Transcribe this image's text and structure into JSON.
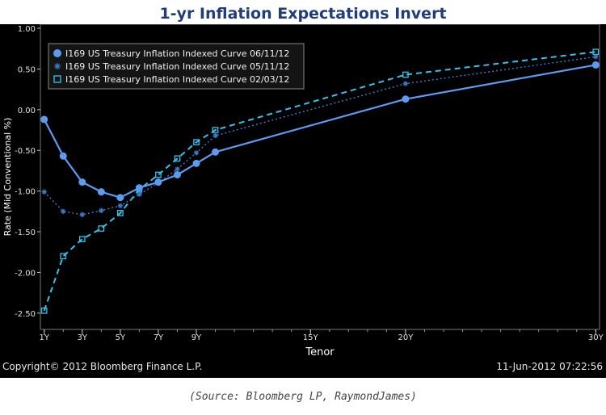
{
  "page": {
    "title": "1-yr Inflation Expectations Invert",
    "caption": "(Source: Bloomberg LP, RaymondJames)"
  },
  "chart_data": {
    "type": "line",
    "title": "1-yr Inflation Expectations Invert",
    "xlabel": "Tenor",
    "ylabel": "Rate (Mid Conventional %)",
    "ylim": [
      -2.7,
      1.05
    ],
    "x_tick_labels": [
      "1Y",
      "3Y",
      "5Y",
      "7Y",
      "9Y",
      "15Y",
      "20Y",
      "30Y"
    ],
    "x_tick_values": [
      1,
      3,
      5,
      7,
      9,
      15,
      20,
      30
    ],
    "y_ticks": [
      1.0,
      0.5,
      0.0,
      -0.5,
      -1.0,
      -1.5,
      -2.0,
      -2.5
    ],
    "y_tick_labels": [
      "1.00",
      "0.50",
      "0.00",
      "-0.50",
      "-1.00",
      "-1.50",
      "-2.00",
      "-2.50"
    ],
    "legend_position": "top-left",
    "copyright": "Copyright© 2012 Bloomberg Finance L.P.",
    "timestamp": "11-Jun-2012 07:22:56",
    "colors": {
      "background": "#000000",
      "series_0": "#5b9bf0",
      "series_1": "#3a78c8",
      "series_2": "#33c3ee",
      "axis_text": "#e0e0e0"
    },
    "series": [
      {
        "name": "I169 US Treasury Inflation Indexed Curve 06/11/12",
        "marker": "circle",
        "line": "solid",
        "x": [
          1,
          2,
          3,
          4,
          5,
          6,
          7,
          8,
          9,
          10,
          20,
          30
        ],
        "values": [
          -0.12,
          -0.57,
          -0.89,
          -1.01,
          -1.08,
          -0.96,
          -0.89,
          -0.8,
          -0.66,
          -0.52,
          0.13,
          0.55
        ]
      },
      {
        "name": "I169 US Treasury Inflation Indexed Curve 05/11/12",
        "marker": "star",
        "line": "dotted",
        "x": [
          1,
          2,
          3,
          4,
          5,
          6,
          7,
          8,
          9,
          10,
          20,
          30
        ],
        "values": [
          -1.01,
          -1.25,
          -1.29,
          -1.24,
          -1.18,
          -1.04,
          -0.9,
          -0.73,
          -0.53,
          -0.32,
          0.32,
          0.65
        ]
      },
      {
        "name": "I169 US Treasury Inflation Indexed Curve 02/03/12",
        "marker": "square",
        "line": "dashed",
        "x": [
          1,
          2,
          3,
          4,
          5,
          6,
          7,
          8,
          9,
          10,
          20,
          30
        ],
        "values": [
          -2.47,
          -1.8,
          -1.59,
          -1.46,
          -1.27,
          -0.98,
          -0.8,
          -0.6,
          -0.4,
          -0.25,
          0.43,
          0.71
        ]
      }
    ]
  }
}
